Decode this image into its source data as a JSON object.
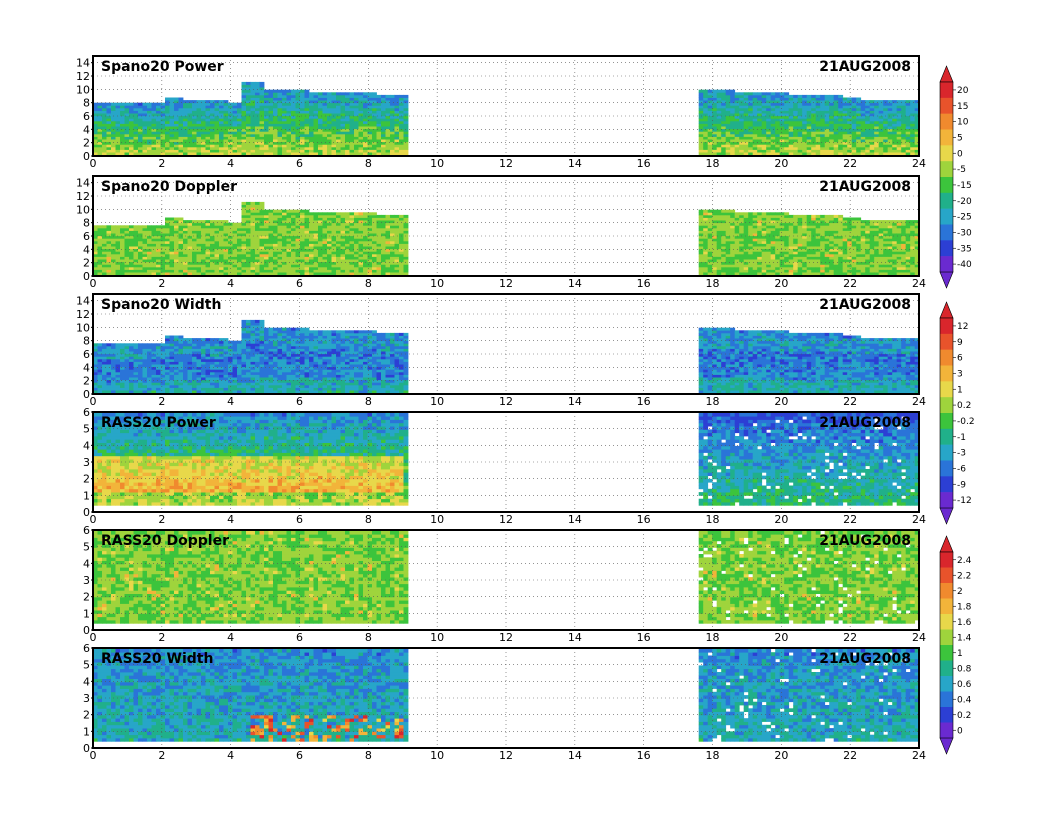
{
  "chart_data": {
    "type": "heatmap",
    "date": "21AUG2008",
    "x_ticks": [
      0,
      2,
      4,
      6,
      8,
      10,
      12,
      14,
      16,
      18,
      20,
      22,
      24
    ],
    "xlim": [
      0,
      24
    ],
    "data_gap_hours": [
      9.1,
      17.6
    ],
    "panels": [
      {
        "title": "Spano20  Power",
        "ylim": [
          0,
          15
        ],
        "y_ticks": [
          0,
          2,
          4,
          6,
          8,
          10,
          12,
          14
        ],
        "colorscale": "power"
      },
      {
        "title": "Spano20  Doppler",
        "ylim": [
          0,
          15
        ],
        "y_ticks": [
          0,
          2,
          4,
          6,
          8,
          10,
          12,
          14
        ],
        "colorscale": "doppler"
      },
      {
        "title": "Spano20  Width",
        "ylim": [
          0,
          15
        ],
        "y_ticks": [
          0,
          2,
          4,
          6,
          8,
          10,
          12,
          14
        ],
        "colorscale": "width"
      },
      {
        "title": "RASS20  Power",
        "ylim": [
          0,
          6
        ],
        "y_ticks": [
          0,
          1,
          2,
          3,
          4,
          5,
          6
        ],
        "colorscale": "power"
      },
      {
        "title": "RASS20  Doppler",
        "ylim": [
          0,
          6
        ],
        "y_ticks": [
          0,
          1,
          2,
          3,
          4,
          5,
          6
        ],
        "colorscale": "doppler"
      },
      {
        "title": "RASS20  Width",
        "ylim": [
          0,
          6
        ],
        "y_ticks": [
          0,
          1,
          2,
          3,
          4,
          5,
          6
        ],
        "colorscale": "width"
      }
    ],
    "colorbars": [
      {
        "name": "power",
        "labels": [
          "20",
          "15",
          "10",
          "5",
          "0",
          "-5",
          "-15",
          "-20",
          "-25",
          "-30",
          "-35",
          "-40"
        ],
        "colors": [
          "#d9262c",
          "#e8532b",
          "#f08a2e",
          "#f2b43a",
          "#e8d84a",
          "#9fd43c",
          "#3cc43c",
          "#20b08a",
          "#27a6c8",
          "#2a74d8",
          "#2c3fd4",
          "#6a2ad0"
        ]
      },
      {
        "name": "doppler",
        "labels": [
          "12",
          "9",
          "6",
          "3",
          "1",
          "0.2",
          "-0.2",
          "-1",
          "-3",
          "-6",
          "-9",
          "-12"
        ],
        "colors": [
          "#d9262c",
          "#e8532b",
          "#f08a2e",
          "#f2b43a",
          "#e8d84a",
          "#9fd43c",
          "#3cc43c",
          "#20b08a",
          "#27a6c8",
          "#2a74d8",
          "#2c3fd4",
          "#6a2ad0"
        ]
      },
      {
        "name": "width",
        "labels": [
          "2.4",
          "2.2",
          "2",
          "1.8",
          "1.6",
          "1.4",
          "1",
          "0.8",
          "0.6",
          "0.4",
          "0.2",
          "0"
        ],
        "colors": [
          "#d9262c",
          "#e8532b",
          "#f08a2e",
          "#f2b43a",
          "#e8d84a",
          "#9fd43c",
          "#3cc43c",
          "#20b08a",
          "#27a6c8",
          "#2a74d8",
          "#2c3fd4",
          "#6a2ad0"
        ]
      }
    ],
    "grid": true
  }
}
